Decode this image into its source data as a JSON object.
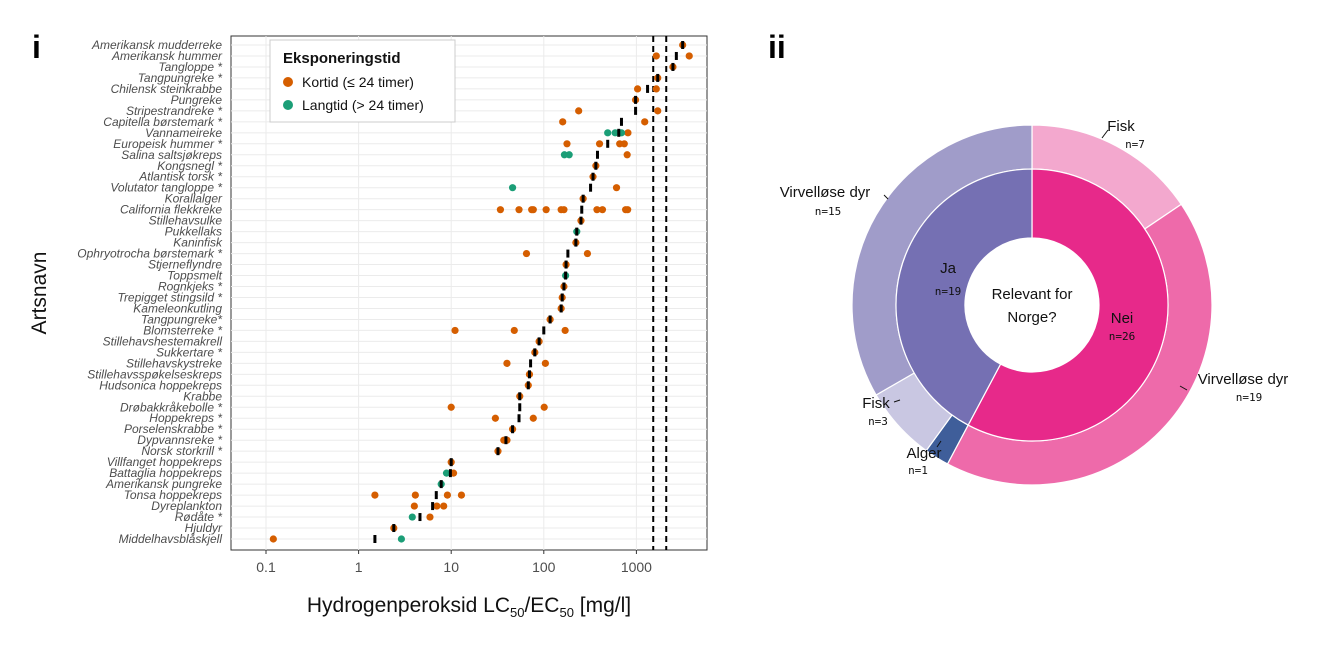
{
  "panel_labels": {
    "left": "i",
    "right": "ii"
  },
  "chart_data": [
    {
      "type": "scatter",
      "xlabel": "Hydrogenperoksid LC50/EC50 [mg/l]",
      "ylabel": "Artsnavn",
      "x_scale": "log",
      "xlim": [
        0.042,
        5900
      ],
      "x_ticks": [
        "0.1",
        "1",
        "10",
        "100",
        "1000"
      ],
      "grid": true,
      "reference_lines": [
        1520,
        2100
      ],
      "legend": {
        "title": "Eksponeringstid",
        "placement": "top-left",
        "entries": [
          {
            "key": "kortid",
            "label": "Kortid (≤ 24 timer)",
            "color": "#D55E00"
          },
          {
            "key": "langtid",
            "label": "Langtid (> 24 timer)",
            "color": "#1B9E77"
          }
        ]
      },
      "median_marker_color": "#000000",
      "species": [
        {
          "name": "Amerikansk mudderreke",
          "kortid": [
            3160
          ],
          "langtid": [],
          "median": 3160
        },
        {
          "name": "Amerikansk hummer",
          "kortid": [
            1640,
            3720
          ],
          "langtid": [],
          "median": 2700
        },
        {
          "name": "Tangloppe *",
          "kortid": [
            2480
          ],
          "langtid": [],
          "median": 2480
        },
        {
          "name": "Tangpungreke *",
          "kortid": [
            1700
          ],
          "langtid": [],
          "median": 1700
        },
        {
          "name": "Chilensk steinkrabbe",
          "kortid": [
            1030,
            1640
          ],
          "langtid": [],
          "median": 1320
        },
        {
          "name": "Pungreke",
          "kortid": [
            980
          ],
          "langtid": [],
          "median": 980
        },
        {
          "name": "Stripestrandreke *",
          "kortid": [
            238,
            1700
          ],
          "langtid": [],
          "median": 980
        },
        {
          "name": "Capitella børstemark *",
          "kortid": [
            160,
            1230
          ],
          "langtid": [],
          "median": 690
        },
        {
          "name": "Vannameireke",
          "kortid": [
            810
          ],
          "langtid": [
            490,
            590,
            690
          ],
          "median": 645
        },
        {
          "name": "Europeisk hummer *",
          "kortid": [
            178,
            400,
            660,
            740
          ],
          "langtid": [],
          "median": 490
        },
        {
          "name": "Salina saltsjøkreps",
          "kortid": [
            795
          ],
          "langtid": [
            167,
            188
          ],
          "median": 380
        },
        {
          "name": "Kongsnegl *",
          "kortid": [
            365
          ],
          "langtid": [],
          "median": 365
        },
        {
          "name": "Atlantisk torsk *",
          "kortid": [
            340
          ],
          "langtid": [],
          "median": 340
        },
        {
          "name": "Volutator tangloppe *",
          "kortid": [
            610
          ],
          "langtid": [
            46
          ],
          "median": 320
        },
        {
          "name": "Korallalger",
          "kortid": [
            266
          ],
          "langtid": [],
          "median": 266
        },
        {
          "name": "California flekkreke",
          "kortid": [
            34,
            54,
            74,
            77,
            106,
            154,
            165,
            375,
            430,
            765,
            805
          ],
          "langtid": [],
          "median": 257
        },
        {
          "name": "Stillehavsulke",
          "kortid": [
            252
          ],
          "langtid": [],
          "median": 252
        },
        {
          "name": "Pukkellaks",
          "kortid": [],
          "langtid": [
            227
          ],
          "median": 227
        },
        {
          "name": "Kaninfisk",
          "kortid": [
            222
          ],
          "langtid": [],
          "median": 222
        },
        {
          "name": "Ophryotrocha børstemark *",
          "kortid": [
            65,
            296
          ],
          "langtid": [],
          "median": 182
        },
        {
          "name": "Stjerneflyndre",
          "kortid": [
            174
          ],
          "langtid": [],
          "median": 174
        },
        {
          "name": "Toppsmelt",
          "kortid": [],
          "langtid": [
            172
          ],
          "median": 172
        },
        {
          "name": "Rognkjeks *",
          "kortid": [
            165
          ],
          "langtid": [],
          "median": 165
        },
        {
          "name": "Trepigget stingsild *",
          "kortid": [
            158
          ],
          "langtid": [],
          "median": 158
        },
        {
          "name": "Kameleonkutling",
          "kortid": [
            154
          ],
          "langtid": [],
          "median": 154
        },
        {
          "name": "Tangpungreke*",
          "kortid": [
            117
          ],
          "langtid": [],
          "median": 117
        },
        {
          "name": "Blomsterreke *",
          "kortid": [
            11,
            48,
            170
          ],
          "langtid": [],
          "median": 100
        },
        {
          "name": "Stillehavshestemakrell",
          "kortid": [
            89
          ],
          "langtid": [],
          "median": 89
        },
        {
          "name": "Sukkertare *",
          "kortid": [
            80
          ],
          "langtid": [],
          "median": 80
        },
        {
          "name": "Stillehavskystreke",
          "kortid": [
            40,
            104
          ],
          "langtid": [],
          "median": 72
        },
        {
          "name": "Stillehavsspøkelseskreps",
          "kortid": [
            70
          ],
          "langtid": [],
          "median": 70
        },
        {
          "name": "Hudsonica hoppekreps",
          "kortid": [
            68
          ],
          "langtid": [],
          "median": 68
        },
        {
          "name": "Krabbe",
          "kortid": [
            55
          ],
          "langtid": [],
          "median": 55
        },
        {
          "name": "Drøbakkråkebolle *",
          "kortid": [
            10,
            101
          ],
          "langtid": [],
          "median": 55
        },
        {
          "name": "Hoppekreps *",
          "kortid": [
            30,
            77
          ],
          "langtid": [],
          "median": 54
        },
        {
          "name": "Porselenskrabbe *",
          "kortid": [
            46
          ],
          "langtid": [],
          "median": 46
        },
        {
          "name": "Dypvannsreke *",
          "kortid": [
            37,
            40
          ],
          "langtid": [],
          "median": 39
        },
        {
          "name": "Norsk storkrill *",
          "kortid": [
            32
          ],
          "langtid": [],
          "median": 32
        },
        {
          "name": "Villfanget hoppekreps",
          "kortid": [
            10
          ],
          "langtid": [],
          "median": 10
        },
        {
          "name": "Battaglia hoppekreps",
          "kortid": [
            10.6
          ],
          "langtid": [
            8.9
          ],
          "median": 9.8
        },
        {
          "name": "Amerikansk pungreke",
          "kortid": [],
          "langtid": [
            7.8
          ],
          "median": 7.8
        },
        {
          "name": "Tonsa hoppekreps",
          "kortid": [
            1.5,
            4.1,
            9.1,
            12.9
          ],
          "langtid": [],
          "median": 6.9
        },
        {
          "name": "Dyreplankton",
          "kortid": [
            4.0,
            7.0,
            8.3
          ],
          "langtid": [],
          "median": 6.3
        },
        {
          "name": "Rødåte *",
          "kortid": [
            5.9
          ],
          "langtid": [
            3.8
          ],
          "median": 4.6
        },
        {
          "name": "Hjuldyr",
          "kortid": [
            2.4
          ],
          "langtid": [],
          "median": 2.4
        },
        {
          "name": "Middelhavsblåskjell",
          "kortid": [
            0.12
          ],
          "langtid": [
            2.9
          ],
          "median": 1.5
        }
      ]
    },
    {
      "type": "pie",
      "subtype": "donut-sunburst",
      "center_label": [
        "Relevant for",
        "Norge?"
      ],
      "inner": [
        {
          "label": "Nei",
          "n": "n=26",
          "value": 26,
          "color": "#E7298A"
        },
        {
          "label": "Ja",
          "n": "n=19",
          "value": 19,
          "color": "#7570B3"
        }
      ],
      "outer": [
        {
          "label": "Fisk",
          "n": "n=7",
          "value": 7,
          "group": "Nei",
          "color": "#F3A8CE"
        },
        {
          "label": "Virvelløse dyr",
          "n": "n=19",
          "value": 19,
          "group": "Nei",
          "color": "#EE6AAA"
        },
        {
          "label": "Alger",
          "n": "n=1",
          "value": 1,
          "group": "Ja",
          "color": "#3F5E9A"
        },
        {
          "label": "Fisk",
          "n": "n=3",
          "value": 3,
          "group": "Ja",
          "color": "#C9C7E2"
        },
        {
          "label": "Virvelløse dyr",
          "n": "n=15",
          "value": 15,
          "group": "Ja",
          "color": "#A09CC9"
        }
      ]
    }
  ]
}
